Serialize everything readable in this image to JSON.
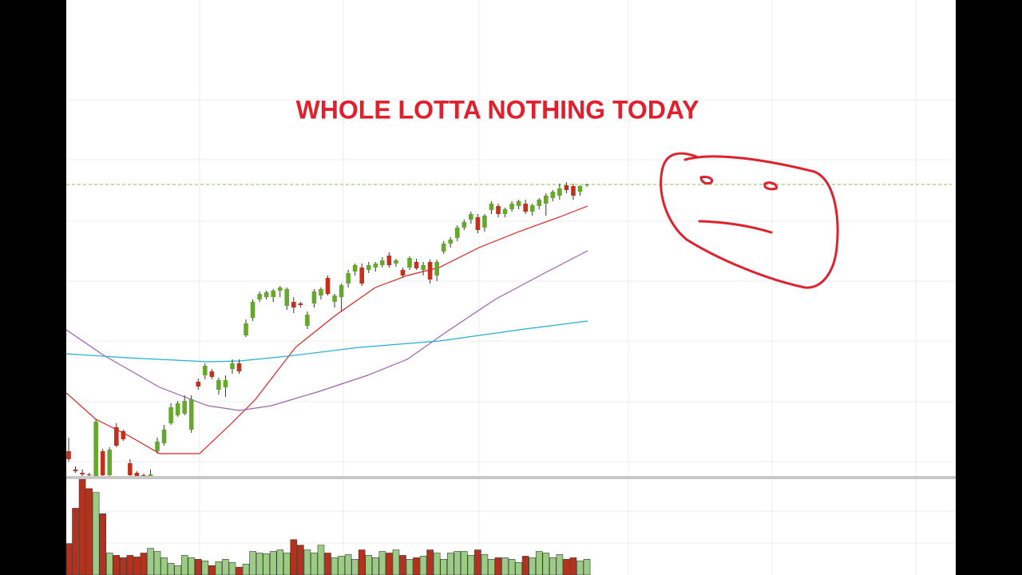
{
  "chart_data": {
    "type": "candlestick",
    "title": "WHOLE LOTTA NOTHING TODAY",
    "ylim": [
      0,
      600
    ],
    "up_color": "#66a82a",
    "down_color": "#c4301c",
    "reference_line": 369,
    "reference_color": "#8cc04a",
    "ohlc": [
      [
        35,
        52,
        22,
        25
      ],
      [
        12,
        16,
        8,
        10
      ],
      [
        8,
        12,
        4,
        6
      ],
      [
        6,
        8,
        3,
        5
      ],
      [
        3,
        75,
        0,
        72
      ],
      [
        35,
        38,
        3,
        5
      ],
      [
        5,
        40,
        3,
        37
      ],
      [
        65,
        70,
        40,
        42
      ],
      [
        60,
        62,
        48,
        50
      ],
      [
        20,
        25,
        4,
        5
      ],
      [
        8,
        10,
        3,
        4
      ],
      [
        5,
        7,
        3,
        4
      ],
      [
        4,
        12,
        2,
        6
      ],
      [
        35,
        52,
        32,
        47
      ],
      [
        45,
        68,
        42,
        62
      ],
      [
        70,
        95,
        68,
        90
      ],
      [
        80,
        98,
        78,
        95
      ],
      [
        82,
        105,
        80,
        98
      ],
      [
        62,
        105,
        58,
        100
      ],
      [
        122,
        126,
        112,
        116
      ],
      [
        130,
        145,
        125,
        142
      ],
      [
        135,
        138,
        125,
        128
      ],
      [
        112,
        127,
        106,
        124
      ],
      [
        115,
        130,
        103,
        124
      ],
      [
        138,
        150,
        132,
        145
      ],
      [
        145,
        150,
        132,
        135
      ],
      [
        180,
        200,
        178,
        195
      ],
      [
        202,
        225,
        198,
        222
      ],
      [
        225,
        235,
        222,
        232
      ],
      [
        228,
        236,
        225,
        234
      ],
      [
        228,
        238,
        222,
        236
      ],
      [
        236,
        242,
        228,
        240
      ],
      [
        217,
        240,
        212,
        238
      ],
      [
        222,
        228,
        208,
        215
      ],
      [
        220,
        222,
        215,
        218
      ],
      [
        192,
        210,
        188,
        206
      ],
      [
        220,
        238,
        215,
        235
      ],
      [
        230,
        240,
        225,
        238
      ],
      [
        252,
        255,
        230,
        232
      ],
      [
        222,
        232,
        215,
        230
      ],
      [
        228,
        245,
        210,
        243
      ],
      [
        245,
        262,
        240,
        258
      ],
      [
        260,
        270,
        255,
        268
      ],
      [
        265,
        270,
        242,
        245
      ],
      [
        262,
        272,
        258,
        268
      ],
      [
        265,
        272,
        260,
        270
      ],
      [
        268,
        278,
        265,
        274
      ],
      [
        280,
        284,
        265,
        268
      ],
      [
        270,
        276,
        266,
        274
      ],
      [
        262,
        265,
        252,
        255
      ],
      [
        265,
        279,
        262,
        277
      ],
      [
        272,
        276,
        262,
        264
      ],
      [
        262,
        272,
        255,
        268
      ],
      [
        272,
        275,
        245,
        250
      ],
      [
        255,
        275,
        248,
        272
      ],
      [
        285,
        298,
        282,
        295
      ],
      [
        295,
        303,
        290,
        300
      ],
      [
        302,
        318,
        298,
        315
      ],
      [
        315,
        325,
        312,
        322
      ],
      [
        325,
        335,
        320,
        332
      ],
      [
        328,
        332,
        308,
        312
      ],
      [
        315,
        332,
        310,
        330
      ],
      [
        337,
        348,
        332,
        345
      ],
      [
        342,
        345,
        328,
        332
      ],
      [
        332,
        340,
        328,
        338
      ],
      [
        338,
        348,
        335,
        345
      ],
      [
        342,
        350,
        338,
        348
      ],
      [
        345,
        350,
        332,
        335
      ],
      [
        335,
        345,
        330,
        343
      ],
      [
        342,
        352,
        338,
        350
      ],
      [
        345,
        358,
        330,
        355
      ],
      [
        352,
        362,
        348,
        360
      ],
      [
        355,
        370,
        350,
        364
      ],
      [
        368,
        372,
        358,
        362
      ],
      [
        367,
        370,
        350,
        355
      ],
      [
        360,
        368,
        355,
        367
      ],
      [
        368,
        370,
        366,
        369
      ]
    ],
    "moving_averages": [
      {
        "color": "#e02020",
        "x": [
          -0.35,
          3.98,
          8.67,
          13.35,
          19.2,
          23.9,
          27.4,
          33.26,
          39.11,
          44.96,
          49.65,
          54.33,
          60.19,
          66.04,
          71.9,
          76.11
        ],
        "values": [
          108,
          75,
          55,
          32,
          32,
          70,
          100,
          165,
          205,
          240,
          255,
          265,
          290,
          310,
          328,
          342
        ]
      },
      {
        "color": "#a060b0",
        "x": [
          -0.35,
          5.15,
          13.35,
          20.37,
          25.06,
          29.74,
          36.77,
          43.79,
          49.65,
          55.5,
          62.53,
          69.56,
          76.11
        ],
        "values": [
          187,
          155,
          115,
          92,
          86,
          92,
          110,
          130,
          150,
          185,
          225,
          257,
          286
        ]
      },
      {
        "color": "#20b0d0",
        "x": [
          -0.35,
          8.67,
          20.37,
          25.06,
          32.08,
          42.62,
          54.33,
          66.04,
          76.11
        ],
        "values": [
          157,
          152,
          147,
          148,
          154,
          165,
          173,
          187,
          198
        ]
      }
    ],
    "volume": {
      "ylim": [
        0,
        122
      ],
      "up_color": "#9ccc84",
      "down_color": "#b4321c",
      "values": [
        40,
        85,
        122,
        110,
        105,
        78,
        28,
        25,
        22,
        25,
        23,
        28,
        34,
        30,
        22,
        15,
        12,
        25,
        22,
        20,
        18,
        12,
        17,
        20,
        16,
        10,
        14,
        30,
        28,
        27,
        30,
        32,
        28,
        45,
        38,
        32,
        28,
        38,
        28,
        22,
        24,
        26,
        20,
        32,
        25,
        22,
        30,
        28,
        32,
        25,
        20,
        22,
        24,
        32,
        28,
        20,
        28,
        30,
        30,
        25,
        32,
        26,
        20,
        22,
        22,
        20,
        16,
        24,
        22,
        30,
        28,
        22,
        26,
        20,
        22,
        18,
        20
      ]
    }
  }
}
